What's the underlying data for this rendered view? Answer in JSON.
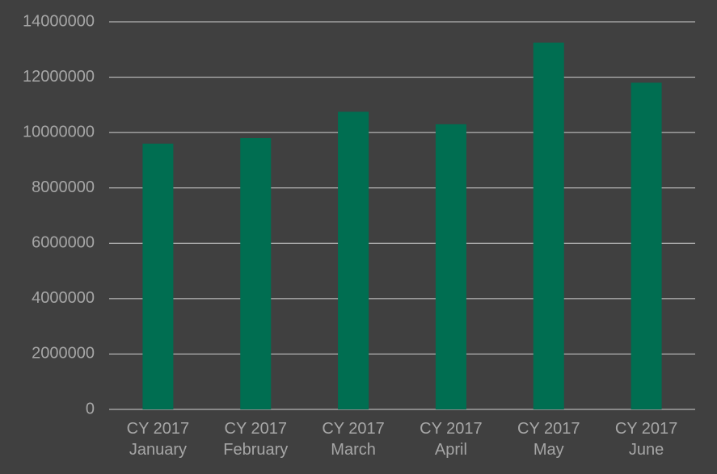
{
  "chart_data": {
    "type": "bar",
    "categories": [
      [
        "CY 2017",
        "January"
      ],
      [
        "CY 2017",
        "February"
      ],
      [
        "CY 2017",
        "March"
      ],
      [
        "CY 2017",
        "April"
      ],
      [
        "CY 2017",
        "May"
      ],
      [
        "CY 2017",
        "June"
      ]
    ],
    "values": [
      9600000,
      9800000,
      10750000,
      10300000,
      13250000,
      11800000
    ],
    "color": "#006e51",
    "ylim": [
      0,
      14000000
    ],
    "yticks": [
      0,
      2000000,
      4000000,
      6000000,
      8000000,
      10000000,
      12000000,
      14000000
    ],
    "grid": true
  }
}
